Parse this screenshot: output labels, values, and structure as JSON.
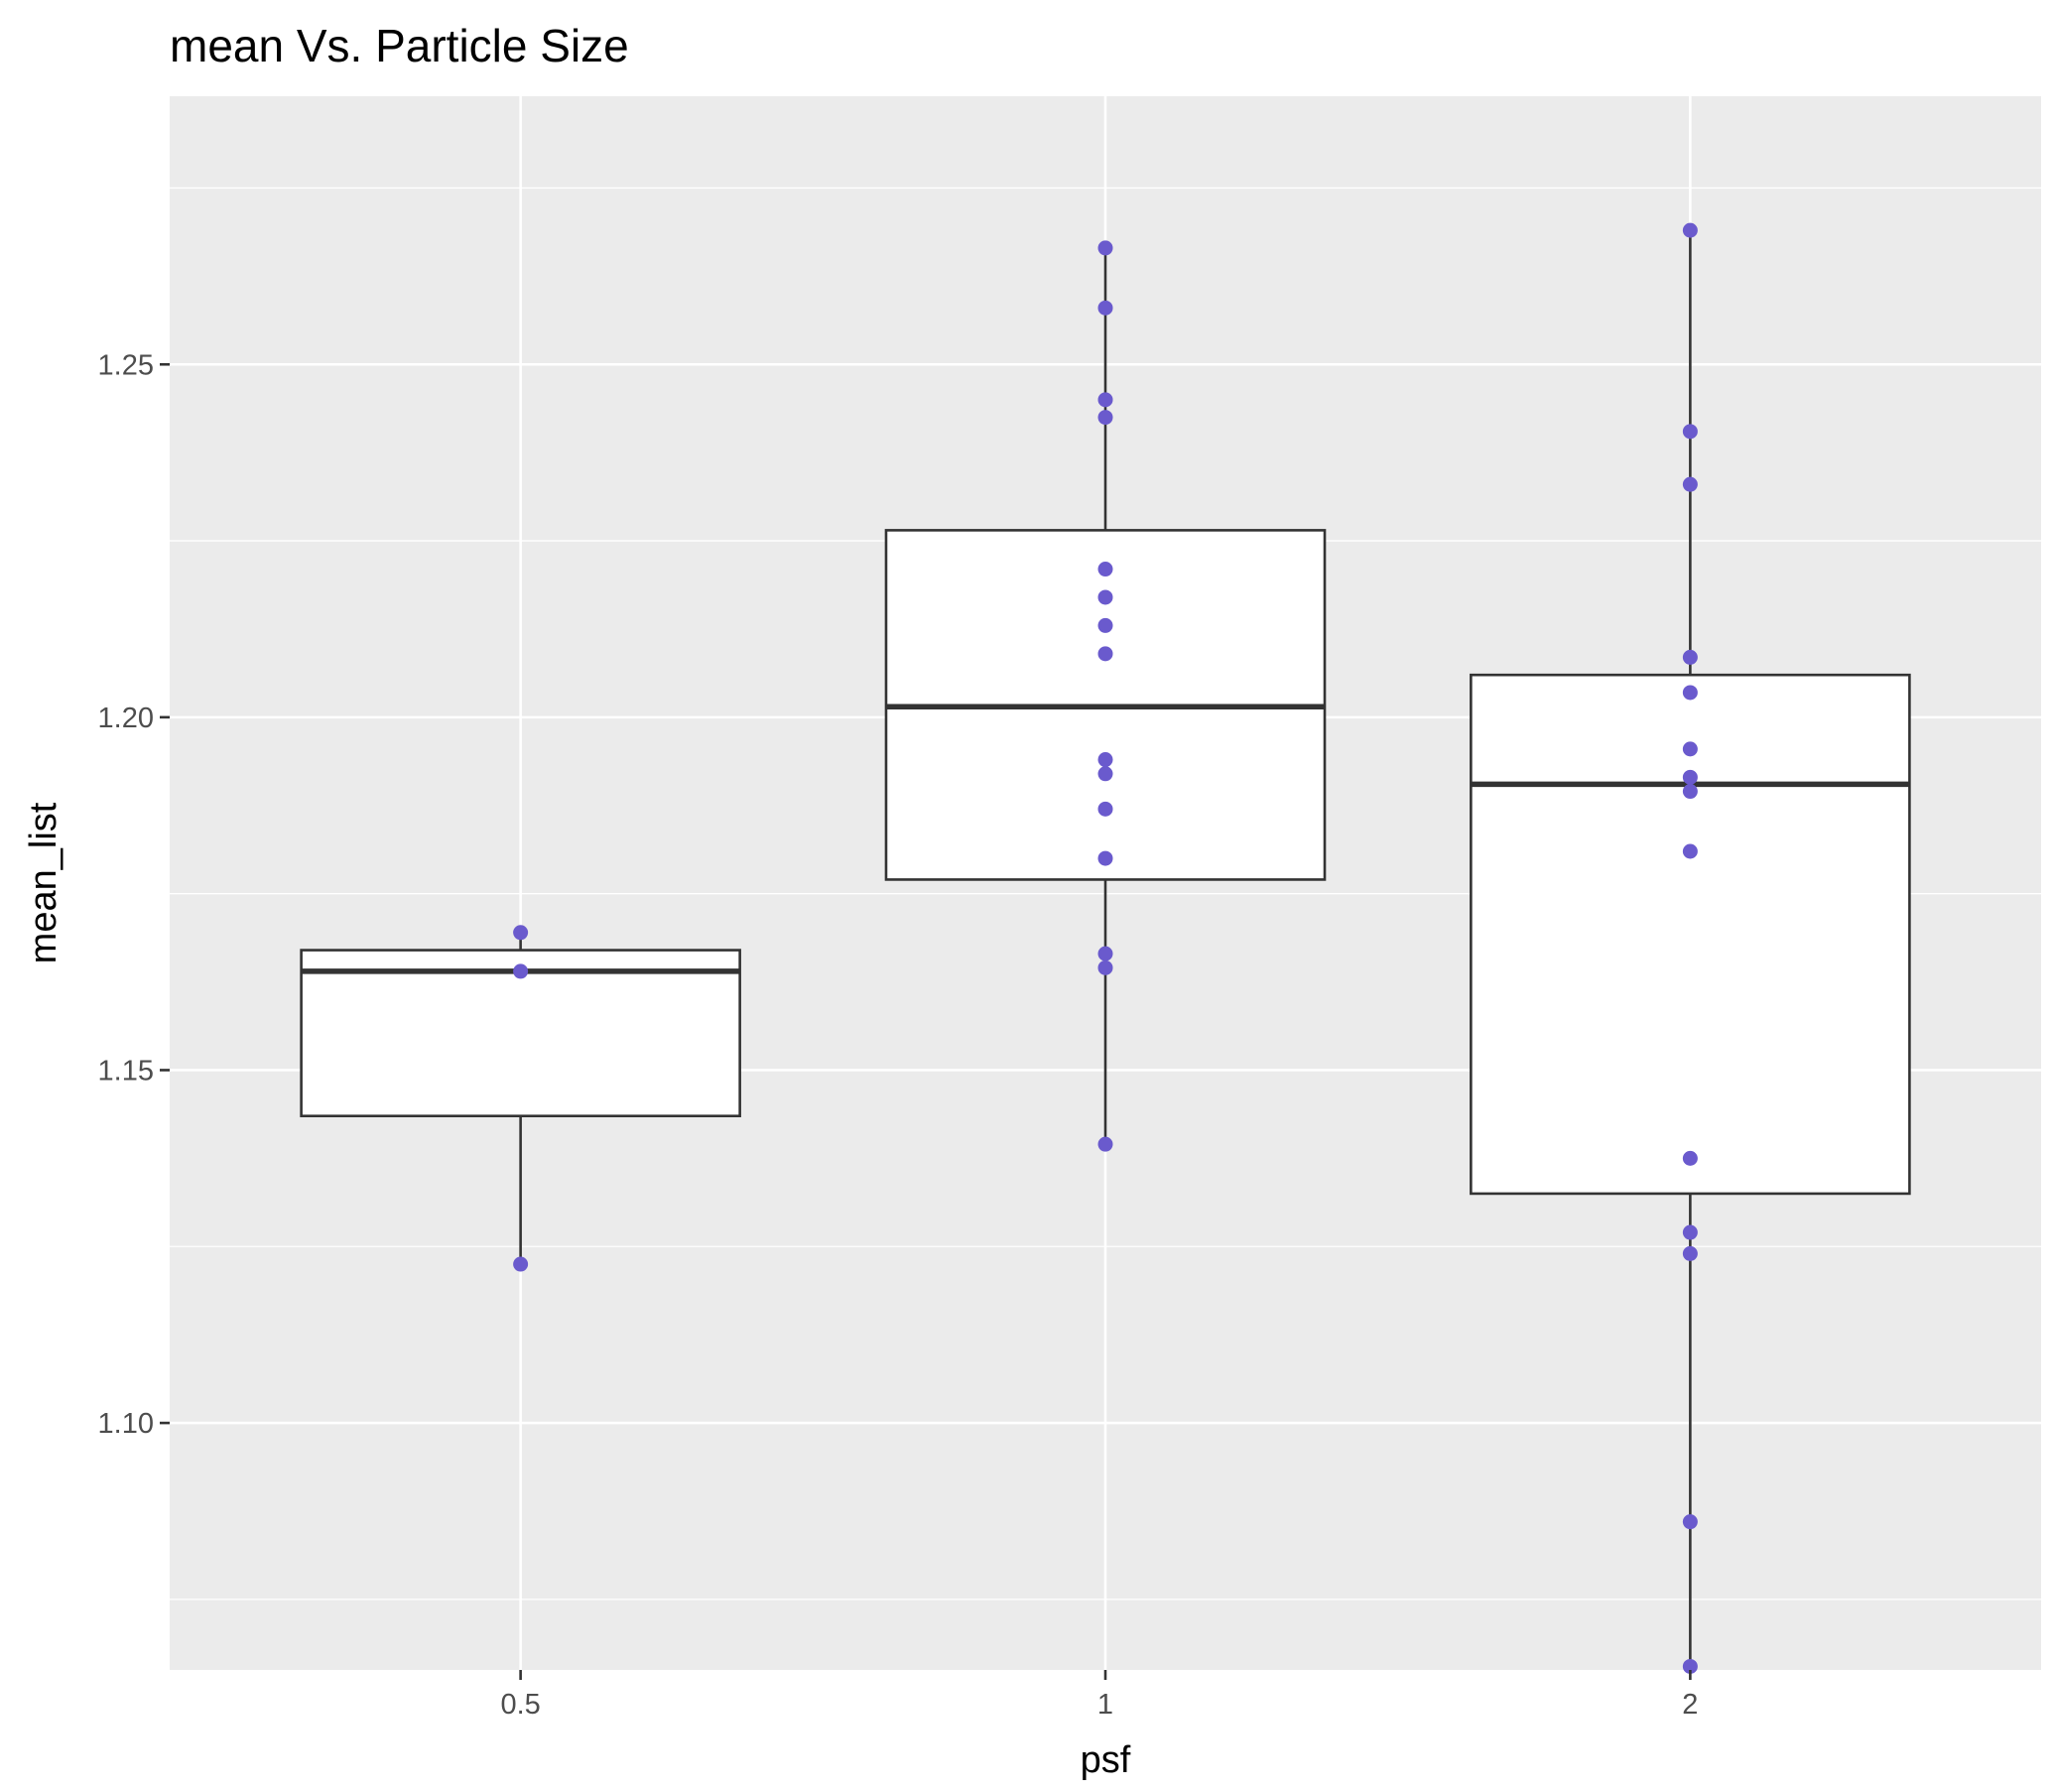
{
  "chart_data": {
    "type": "boxplot",
    "title": "mean Vs. Particle Size",
    "xlabel": "psf",
    "ylabel": "mean_list",
    "categories": [
      "0.5",
      "1",
      "2"
    ],
    "ylim": [
      1.065,
      1.288
    ],
    "yticks": [
      1.1,
      1.15,
      1.2,
      1.25
    ],
    "ytick_labels": [
      "1.10",
      "1.15",
      "1.20",
      "1.25"
    ],
    "grid": true,
    "legend": "none",
    "colors": {
      "panel": "#ebebeb",
      "grid": "#ffffff",
      "box_fill": "#ffffff",
      "box_stroke": "#333333",
      "point": "#6a5acd"
    },
    "boxes": [
      {
        "category": "0.5",
        "lower_whisker": 1.1225,
        "q1": 1.1435,
        "median": 1.164,
        "q3": 1.167,
        "upper_whisker": 1.1695
      },
      {
        "category": "1",
        "lower_whisker": 1.1395,
        "q1": 1.177,
        "median": 1.2015,
        "q3": 1.2265,
        "upper_whisker": 1.2665
      },
      {
        "category": "2",
        "lower_whisker": 1.0655,
        "q1": 1.1325,
        "median": 1.1905,
        "q3": 1.206,
        "upper_whisker": 1.269
      }
    ],
    "points": [
      {
        "category": "0.5",
        "values": [
          1.1225,
          1.164,
          1.1695
        ]
      },
      {
        "category": "1",
        "values": [
          1.1395,
          1.1645,
          1.1665,
          1.18,
          1.187,
          1.192,
          1.194,
          1.209,
          1.213,
          1.217,
          1.221,
          1.2425,
          1.245,
          1.258,
          1.2665
        ]
      },
      {
        "category": "2",
        "values": [
          1.0655,
          1.086,
          1.124,
          1.127,
          1.1375,
          1.181,
          1.1895,
          1.1915,
          1.1955,
          1.2035,
          1.2085,
          1.233,
          1.2405,
          1.269
        ]
      }
    ]
  }
}
